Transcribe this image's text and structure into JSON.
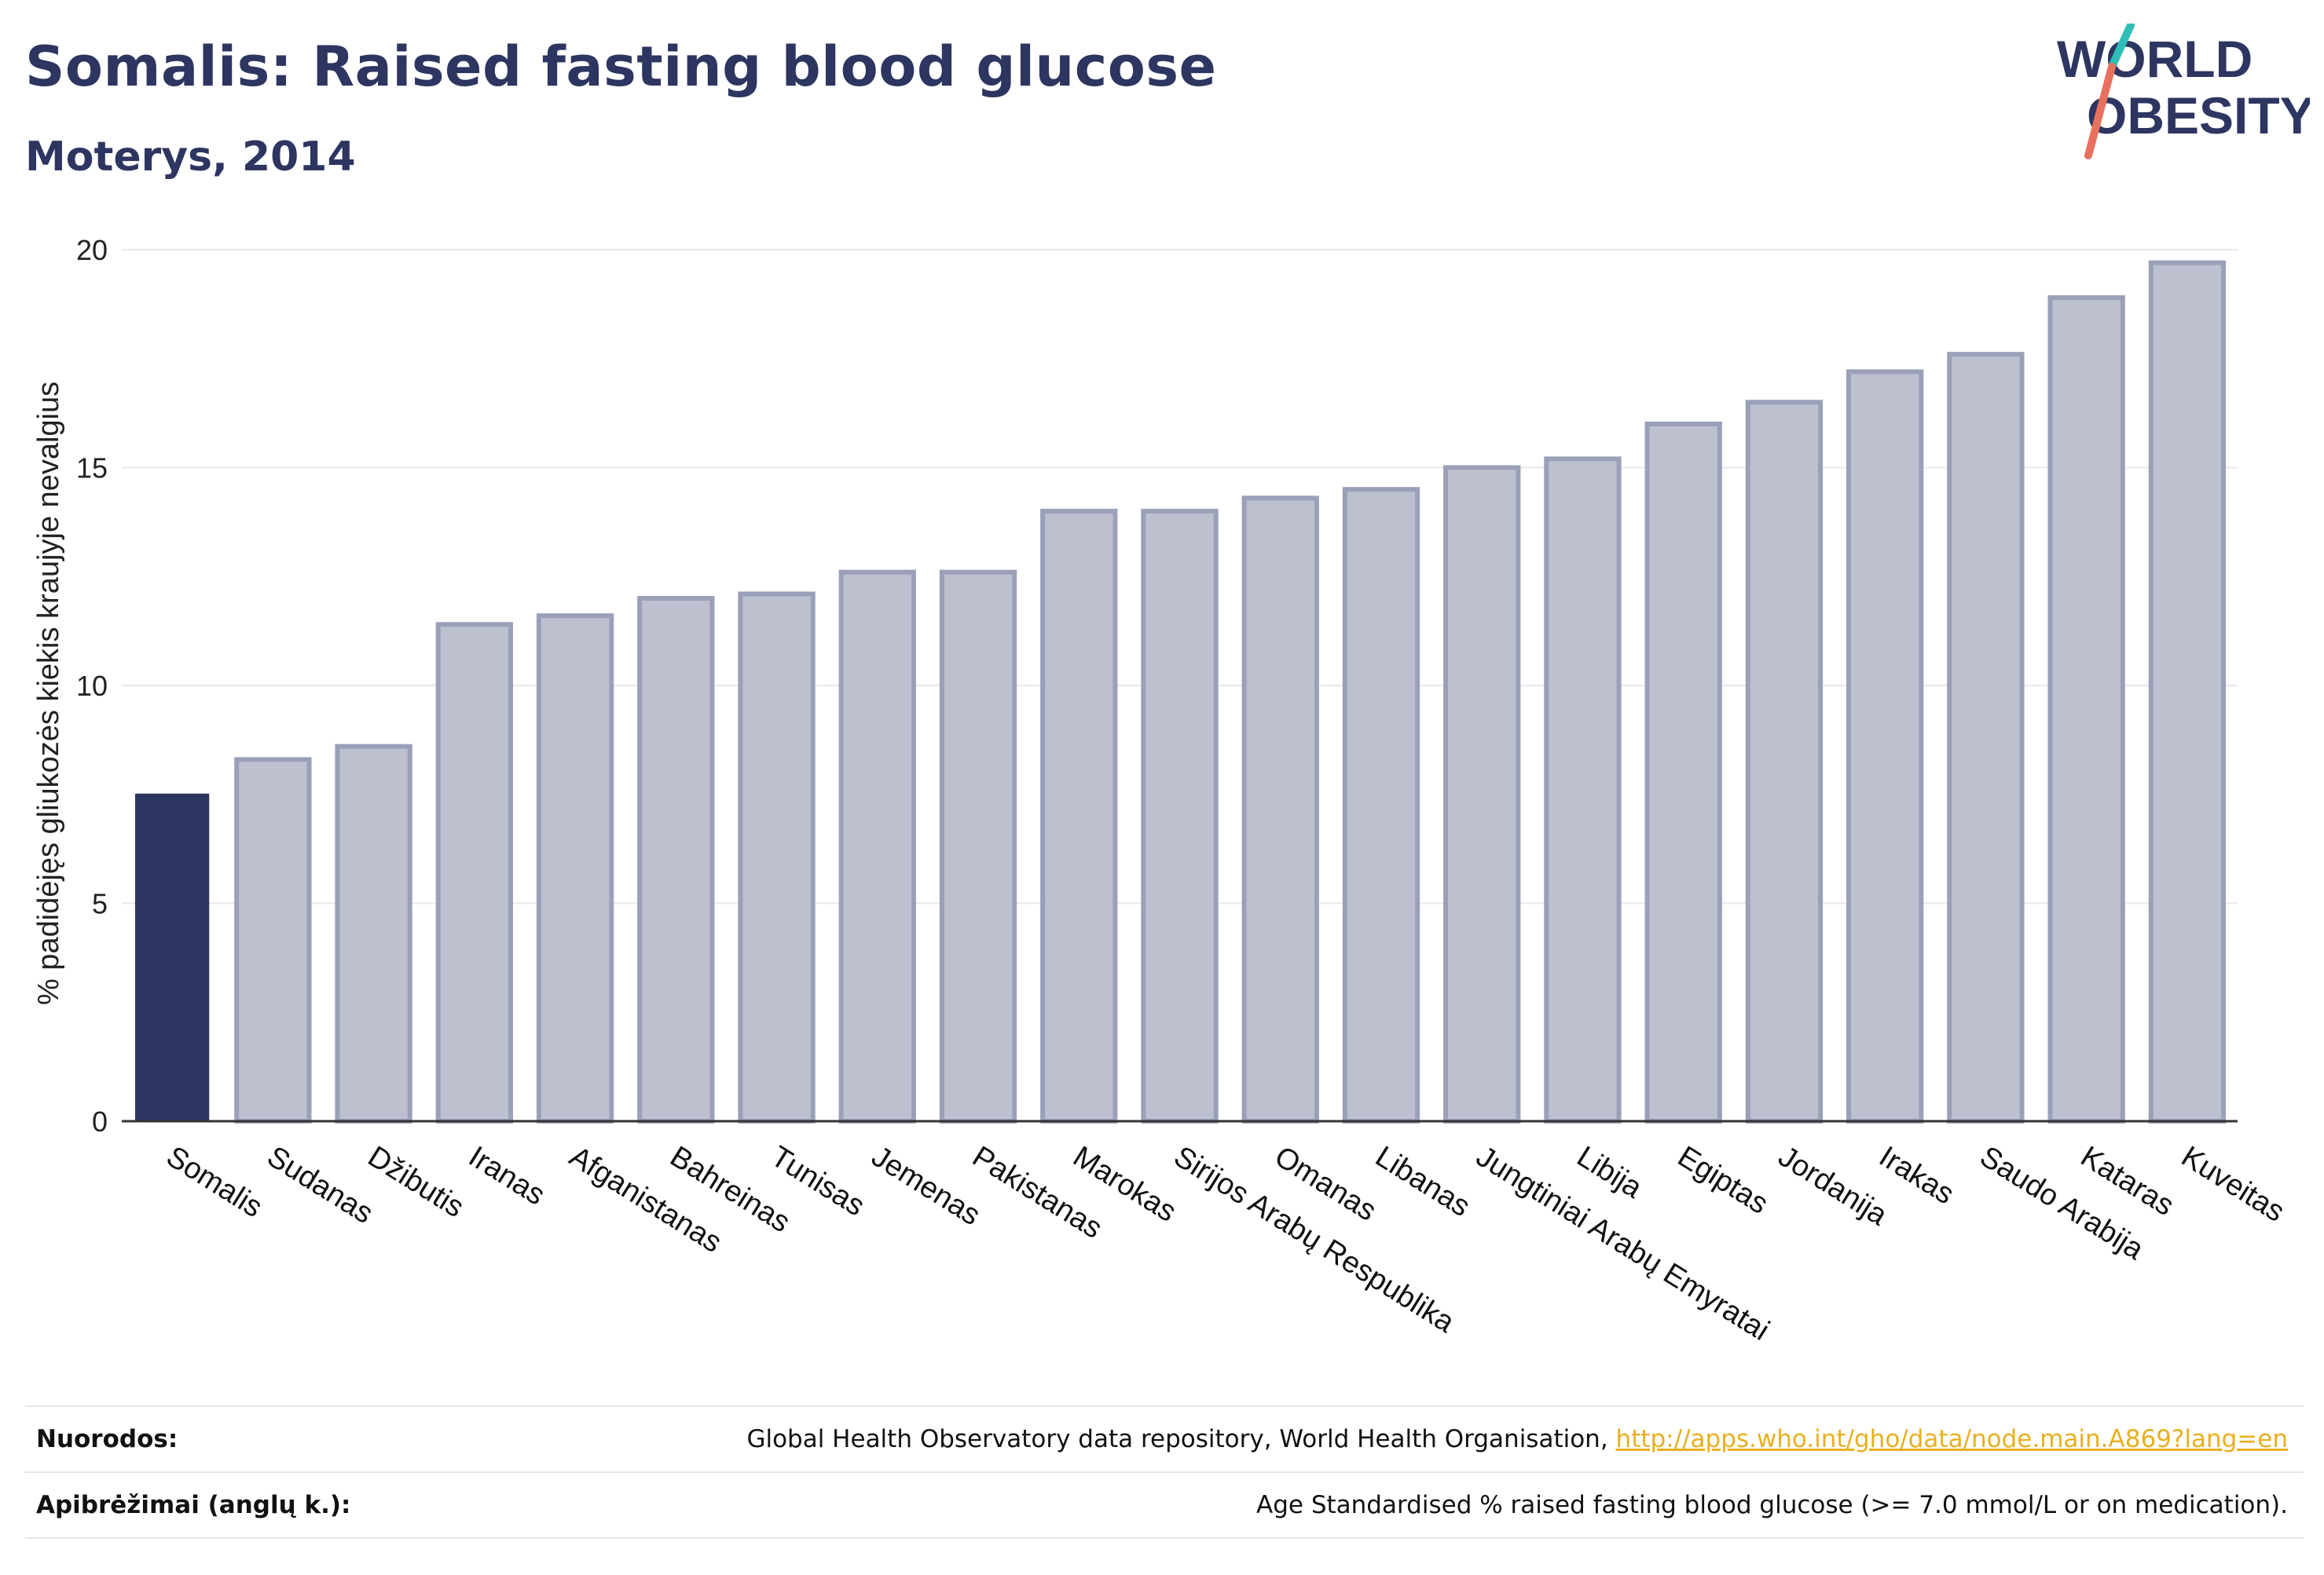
{
  "header": {
    "title": "Somalis: Raised fasting blood glucose",
    "subtitle": "Moterys, 2014"
  },
  "logo": {
    "line1": "WORLD",
    "line2": "OBESITY"
  },
  "chart_data": {
    "type": "bar",
    "ylabel": "% padidėjęs gliukozės kiekis kraujyje nevalgius",
    "xlabel": "",
    "ylim": [
      0,
      20
    ],
    "yticks": [
      0,
      5,
      10,
      15,
      20
    ],
    "grid": true,
    "highlight_category": "Somalis",
    "colors": {
      "highlight": "#2d3561",
      "bar_fill": "#bdc0cf",
      "bar_stroke": "#9ba0b9"
    },
    "categories": [
      "Somalis",
      "Sudanas",
      "Džibutis",
      "Iranas",
      "Afganistanas",
      "Bahreinas",
      "Tunisas",
      "Jemenas",
      "Pakistanas",
      "Marokas",
      "Sirijos Arabų Respublika",
      "Omanas",
      "Libanas",
      "Jungtiniai Arabų Emyratai",
      "Libija",
      "Egiptas",
      "Jordanija",
      "Irakas",
      "Saudo Arabija",
      "Kataras",
      "Kuveitas"
    ],
    "values": [
      7.5,
      8.3,
      8.6,
      11.4,
      11.6,
      12.0,
      12.1,
      12.6,
      12.6,
      14.0,
      14.0,
      14.3,
      14.5,
      15.0,
      15.2,
      16.0,
      16.5,
      17.2,
      17.6,
      18.9,
      19.7
    ]
  },
  "footer": {
    "references_label": "Nuorodos:",
    "references_text": "Global Health Observatory data repository, World Health Organisation, ",
    "references_link": "http://apps.who.int/gho/data/node.main.A869?lang=en",
    "definitions_label": "Apibrėžimai (anglų k.):",
    "definitions_text": "Age Standardised % raised fasting blood glucose (>= 7.0 mmol/L or on medication)."
  }
}
